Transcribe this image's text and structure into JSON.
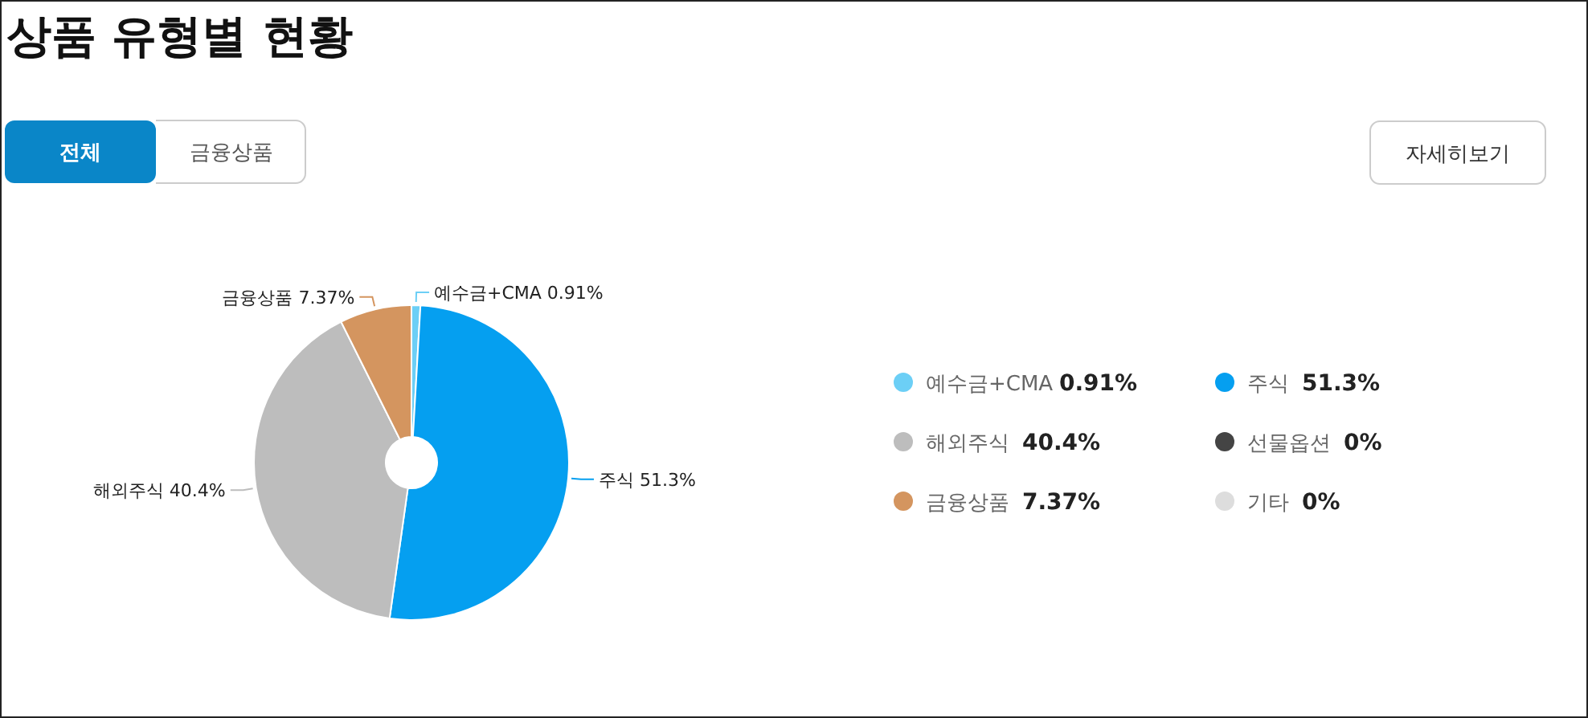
{
  "chart_data": {
    "type": "donut",
    "title": "상품 유형별 현황",
    "categories": [
      "예수금+CMA",
      "주식",
      "해외주식",
      "선물옵션",
      "금융상품",
      "기타"
    ],
    "values": [
      0.91,
      51.3,
      40.4,
      0,
      7.37,
      0
    ],
    "colors": [
      "#6ccff6",
      "#059ff0",
      "#bdbdbd",
      "#444444",
      "#d4955f",
      "#dddddd"
    ],
    "value_labels": [
      "0.91%",
      "51.3%",
      "40.4%",
      "0%",
      "7.37%",
      "0%"
    ],
    "legend": "right",
    "annotations": [
      "전체",
      "금융상품",
      "자세히보기"
    ]
  }
}
